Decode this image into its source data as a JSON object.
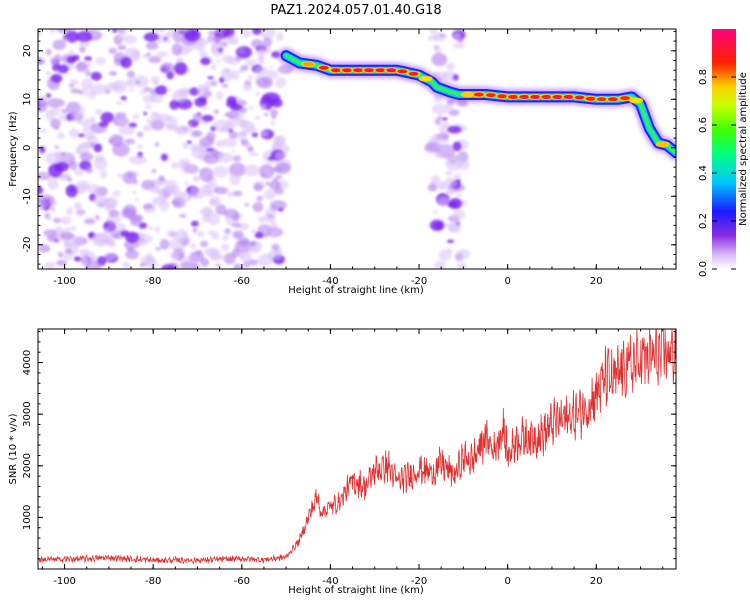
{
  "title": "PAZ1.2024.057.01.40.G18",
  "chart_data": [
    {
      "type": "heatmap",
      "xlabel": "Height of straight line (km)",
      "ylabel": "Frequency (Hz)",
      "xlim": [
        -106,
        38
      ],
      "ylim": [
        -25,
        24.5
      ],
      "xticks": [
        -100,
        -80,
        -60,
        -40,
        -20,
        0,
        20
      ],
      "xtick_labels": [
        "-100",
        "-80",
        "-60",
        "-40",
        "-20",
        "0",
        "20"
      ],
      "yticks": [
        -20,
        -10,
        0,
        10,
        20
      ],
      "ytick_labels": [
        "-20",
        "-10",
        "0",
        "10",
        "20"
      ],
      "colorbar": {
        "label": "Normalized spectral amplitude",
        "range": [
          0,
          1
        ],
        "ticks": [
          0.0,
          0.2,
          0.4,
          0.6,
          0.8
        ],
        "tick_labels": [
          "0.0",
          "0.2",
          "0.4",
          "0.6",
          "0.8"
        ],
        "colormap": "white-purple-blue-cyan-green-yellow-red-magenta"
      },
      "noise_region": {
        "x": [
          -106,
          -50
        ],
        "y": [
          -25,
          24.5
        ],
        "amplitude": 0.12
      },
      "noise_column": {
        "x": [
          -17,
          -10
        ],
        "y": [
          -25,
          24.5
        ],
        "amplitude": 0.1
      },
      "ridge": {
        "x": [
          -50,
          -47,
          -43,
          -40,
          -35,
          -30,
          -25,
          -20,
          -17,
          -16,
          -13,
          -11,
          -10,
          -8,
          -5,
          0,
          5,
          10,
          15,
          20,
          25,
          28,
          30,
          32,
          34,
          36,
          38
        ],
        "y": [
          19,
          17.5,
          17,
          16,
          16,
          16,
          16,
          15,
          13.5,
          12.5,
          11.5,
          11,
          11,
          11,
          11,
          10.5,
          10.5,
          10.5,
          10.5,
          10,
          10,
          10.5,
          9,
          4,
          1,
          0.5,
          -1
        ],
        "amplitude": [
          0.5,
          0.7,
          0.85,
          0.9,
          0.9,
          0.95,
          0.9,
          0.8,
          0.6,
          0.45,
          0.4,
          0.5,
          0.65,
          0.85,
          0.85,
          0.85,
          0.9,
          0.9,
          0.9,
          0.85,
          0.85,
          0.8,
          0.6,
          0.55,
          0.75,
          0.75,
          0.5
        ]
      }
    },
    {
      "type": "line",
      "xlabel": "Height of straight line (km)",
      "ylabel": "SNR (10 * v/v)",
      "xlim": [
        -106,
        38
      ],
      "ylim": [
        0,
        4650
      ],
      "xticks": [
        -100,
        -80,
        -60,
        -40,
        -20,
        0,
        20
      ],
      "xtick_labels": [
        "-100",
        "-80",
        "-60",
        "-40",
        "-20",
        "0",
        "20"
      ],
      "yticks": [
        1000,
        2000,
        3000,
        4000
      ],
      "ytick_labels": [
        "1000",
        "2000",
        "3000",
        "4000"
      ],
      "color": "#e03030",
      "series": [
        {
          "x": [
            -106,
            -95,
            -90,
            -80,
            -70,
            -60,
            -55,
            -50,
            -47,
            -45,
            -43,
            -42,
            -40,
            -38,
            -35,
            -32,
            -30,
            -27,
            -25,
            -22,
            -20,
            -17,
            -15,
            -12,
            -10,
            -8,
            -5,
            -3,
            -1,
            0,
            2,
            5,
            8,
            10,
            12,
            15,
            18,
            20,
            22,
            24,
            26,
            28,
            30,
            32,
            35,
            38
          ],
          "y": [
            180,
            200,
            220,
            170,
            170,
            200,
            180,
            230,
            550,
            1000,
            1400,
            1100,
            1200,
            1300,
            1700,
            1600,
            1900,
            2000,
            1700,
            1800,
            1950,
            1850,
            2050,
            1800,
            2150,
            2100,
            2550,
            2300,
            2750,
            2200,
            2500,
            2550,
            2600,
            2800,
            2900,
            2950,
            3150,
            3400,
            3700,
            3650,
            3850,
            3950,
            4050,
            4100,
            4150,
            4250
          ]
        }
      ]
    }
  ]
}
